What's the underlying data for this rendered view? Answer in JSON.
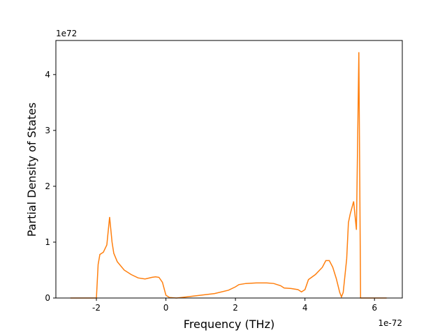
{
  "chart_data": {
    "type": "line",
    "x_label": "Frequency (THz)",
    "y_label": "Partial Density of States",
    "x_offset_label": "1e-72",
    "y_offset_label": "1e72",
    "x": [
      -2.75,
      -2.0,
      -1.95,
      -1.9,
      -1.8,
      -1.7,
      -1.62,
      -1.55,
      -1.5,
      -1.4,
      -1.2,
      -1.0,
      -0.8,
      -0.6,
      -0.4,
      -0.3,
      -0.2,
      -0.1,
      0.0,
      0.1,
      0.3,
      0.6,
      1.0,
      1.4,
      1.8,
      2.0,
      2.1,
      2.3,
      2.6,
      2.9,
      3.1,
      3.3,
      3.4,
      3.6,
      3.8,
      3.9,
      4.0,
      4.1,
      4.3,
      4.5,
      4.6,
      4.7,
      4.8,
      4.9,
      5.0,
      5.05,
      5.1,
      5.2,
      5.25,
      5.3,
      5.4,
      5.48,
      5.55,
      5.6,
      5.65,
      6.35
    ],
    "series": [
      {
        "color": "#ff7f0e",
        "values": [
          0,
          0,
          0.6,
          0.78,
          0.82,
          0.95,
          1.45,
          1.0,
          0.8,
          0.65,
          0.5,
          0.42,
          0.36,
          0.34,
          0.37,
          0.38,
          0.37,
          0.28,
          0.05,
          0.01,
          0,
          0.02,
          0.05,
          0.08,
          0.14,
          0.2,
          0.24,
          0.26,
          0.27,
          0.27,
          0.26,
          0.22,
          0.18,
          0.17,
          0.15,
          0.11,
          0.15,
          0.33,
          0.42,
          0.55,
          0.67,
          0.67,
          0.55,
          0.35,
          0.1,
          0.02,
          0.1,
          0.7,
          1.35,
          1.5,
          1.73,
          1.22,
          4.4,
          0,
          0,
          0
        ]
      }
    ],
    "xlim": [
      -3.166,
      6.8
    ],
    "ylim": [
      0,
      4.61
    ],
    "xticks": [
      -2,
      0,
      2,
      4,
      6
    ],
    "yticks": [
      0,
      1,
      2,
      3,
      4
    ]
  }
}
